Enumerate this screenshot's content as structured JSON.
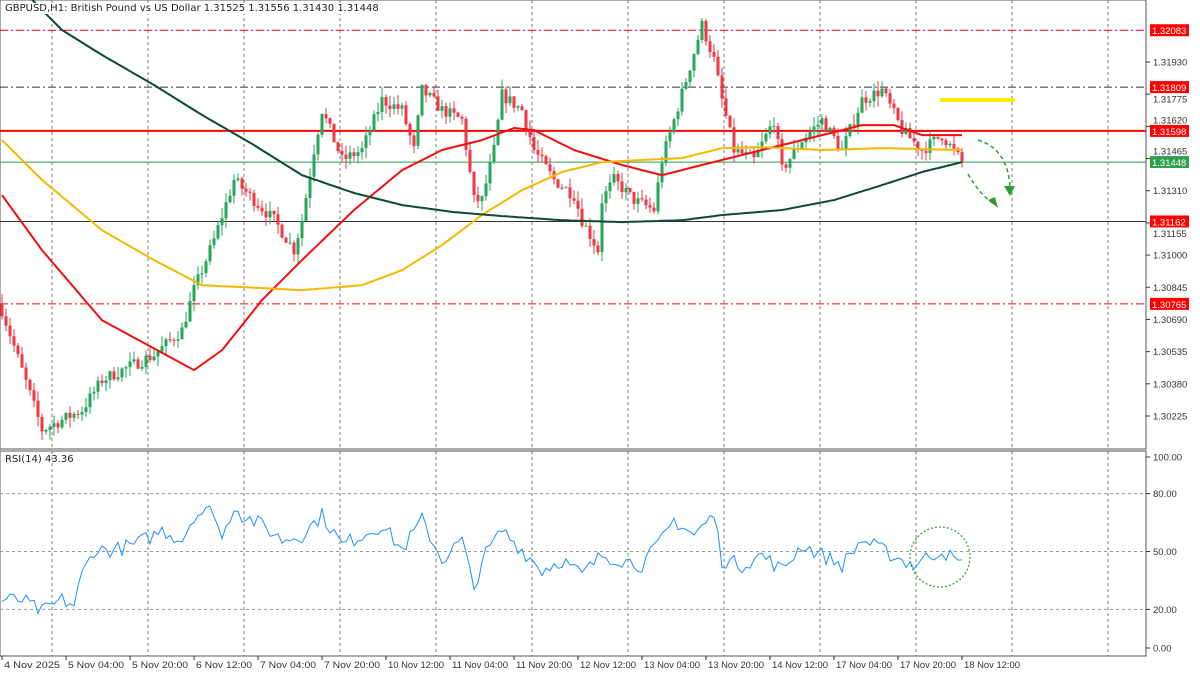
{
  "header": {
    "symbol_line": "GBPUSD,H1:  British Pound vs US Dollar  1.31525 1.31556 1.31430 1.31448"
  },
  "rsi": {
    "title": "RSI(14) 43.36",
    "axis_ticks": [
      "100.00",
      "80.00",
      "50.00",
      "20.00",
      "0.00"
    ],
    "levels": [
      80,
      50,
      20
    ],
    "keyframes": [
      [
        0,
        24.9
      ],
      [
        5,
        24.9
      ],
      [
        10,
        18.7
      ],
      [
        15,
        24.9
      ],
      [
        18,
        22.3
      ],
      [
        20,
        37.8
      ],
      [
        23,
        50.8
      ],
      [
        28,
        50.8
      ],
      [
        33,
        53.4
      ],
      [
        38,
        58.5
      ],
      [
        40,
        61.1
      ],
      [
        45,
        56
      ],
      [
        48,
        68.9
      ],
      [
        53,
        71.5
      ],
      [
        55,
        56
      ],
      [
        58,
        74.1
      ],
      [
        60,
        68.9
      ],
      [
        65,
        63.7
      ],
      [
        70,
        56
      ],
      [
        75,
        58.5
      ],
      [
        80,
        68.9
      ],
      [
        85,
        53.4
      ],
      [
        90,
        58.5
      ],
      [
        95,
        63.7
      ],
      [
        100,
        50.8
      ],
      [
        105,
        66.3
      ],
      [
        110,
        45.6
      ],
      [
        115,
        56
      ],
      [
        118,
        30
      ],
      [
        120,
        45.6
      ],
      [
        125,
        61.1
      ],
      [
        130,
        50.8
      ],
      [
        135,
        40.4
      ],
      [
        140,
        45.6
      ],
      [
        145,
        37.8
      ],
      [
        150,
        48.2
      ],
      [
        155,
        45.6
      ],
      [
        160,
        43
      ],
      [
        165,
        56
      ],
      [
        168,
        66.3
      ],
      [
        173,
        58.5
      ],
      [
        178,
        68.9
      ],
      [
        180,
        45.6
      ],
      [
        185,
        43
      ],
      [
        190,
        48.2
      ],
      [
        195,
        40.4
      ],
      [
        200,
        53.4
      ],
      [
        205,
        48.2
      ],
      [
        210,
        43
      ],
      [
        215,
        56
      ],
      [
        220,
        50.8
      ],
      [
        225,
        45.6
      ],
      [
        228,
        43
      ],
      [
        230,
        45.6
      ],
      [
        235,
        50.8
      ],
      [
        238,
        45.6
      ],
      [
        240,
        43
      ]
    ]
  },
  "chart_data": {
    "type": "candlestick",
    "title": "GBPUSD,H1: British Pound vs US Dollar",
    "ohlc_last": {
      "open": 1.31525,
      "high": 1.31556,
      "low": 1.3143,
      "close": 1.31448
    },
    "ylim": [
      1.3013,
      1.3228
    ],
    "y_ticks": [
      "1.31930",
      "1.31775",
      "1.31620",
      "1.31465",
      "1.31310",
      "1.31155",
      "1.31000",
      "1.30845",
      "1.30690",
      "1.30535",
      "1.30380",
      "1.30225"
    ],
    "x_ticks": [
      "4 Nov 2025",
      "5 Nov 04:00",
      "5 Nov 20:00",
      "6 Nov 12:00",
      "7 Nov 04:00",
      "7 Nov 20:00",
      "10 Nov 12:00",
      "11 Nov 04:00",
      "11 Nov 20:00",
      "12 Nov 12:00",
      "13 Nov 04:00",
      "13 Nov 20:00",
      "14 Nov 12:00",
      "17 Nov 04:00",
      "17 Nov 20:00",
      "18 Nov 12:00"
    ],
    "bars_total": 241,
    "close_keyframes": [
      [
        0,
        1.30735
      ],
      [
        5,
        1.30446
      ],
      [
        10,
        1.30158
      ],
      [
        15,
        1.30206
      ],
      [
        20,
        1.30254
      ],
      [
        25,
        1.30398
      ],
      [
        30,
        1.30446
      ],
      [
        38,
        1.30519
      ],
      [
        45,
        1.30639
      ],
      [
        48,
        1.30832
      ],
      [
        53,
        1.31073
      ],
      [
        58,
        1.31362
      ],
      [
        63,
        1.31265
      ],
      [
        68,
        1.31169
      ],
      [
        73,
        1.31025
      ],
      [
        75,
        1.31169
      ],
      [
        78,
        1.31506
      ],
      [
        80,
        1.31699
      ],
      [
        85,
        1.31458
      ],
      [
        90,
        1.31506
      ],
      [
        95,
        1.31747
      ],
      [
        100,
        1.31699
      ],
      [
        103,
        1.31506
      ],
      [
        105,
        1.31795
      ],
      [
        110,
        1.31699
      ],
      [
        115,
        1.3165
      ],
      [
        118,
        1.31265
      ],
      [
        120,
        1.31265
      ],
      [
        123,
        1.31506
      ],
      [
        125,
        1.31771
      ],
      [
        130,
        1.31699
      ],
      [
        133,
        1.31506
      ],
      [
        138,
        1.31362
      ],
      [
        143,
        1.31289
      ],
      [
        145,
        1.31169
      ],
      [
        149,
        1.31025
      ],
      [
        150,
        1.31265
      ],
      [
        153,
        1.31362
      ],
      [
        158,
        1.31265
      ],
      [
        163,
        1.31217
      ],
      [
        165,
        1.31458
      ],
      [
        168,
        1.3165
      ],
      [
        171,
        1.31843
      ],
      [
        175,
        1.32108
      ],
      [
        178,
        1.3194
      ],
      [
        180,
        1.31747
      ],
      [
        183,
        1.31506
      ],
      [
        188,
        1.31458
      ],
      [
        193,
        1.3165
      ],
      [
        195,
        1.3141
      ],
      [
        200,
        1.31554
      ],
      [
        205,
        1.3165
      ],
      [
        210,
        1.31506
      ],
      [
        215,
        1.31747
      ],
      [
        220,
        1.31795
      ],
      [
        225,
        1.31602
      ],
      [
        230,
        1.31506
      ],
      [
        235,
        1.31578
      ],
      [
        240,
        1.31448
      ]
    ],
    "series": [
      {
        "name": "MA red",
        "color": "#f01010",
        "keyframes": [
          [
            0,
            1.31289
          ],
          [
            10,
            1.31024
          ],
          [
            25,
            1.30686
          ],
          [
            48,
            1.30446
          ],
          [
            55,
            1.30542
          ],
          [
            65,
            1.30783
          ],
          [
            75,
            1.30976
          ],
          [
            88,
            1.31217
          ],
          [
            100,
            1.31409
          ],
          [
            110,
            1.31506
          ],
          [
            120,
            1.31554
          ],
          [
            128,
            1.31612
          ],
          [
            133,
            1.31602
          ],
          [
            143,
            1.31506
          ],
          [
            155,
            1.31434
          ],
          [
            165,
            1.31385
          ],
          [
            175,
            1.31434
          ],
          [
            190,
            1.31506
          ],
          [
            205,
            1.31578
          ],
          [
            215,
            1.31626
          ],
          [
            223,
            1.31626
          ],
          [
            230,
            1.31578
          ],
          [
            240,
            1.31578
          ]
        ]
      },
      {
        "name": "MA orange",
        "color": "#f5b800",
        "keyframes": [
          [
            0,
            1.31554
          ],
          [
            10,
            1.31362
          ],
          [
            25,
            1.3112
          ],
          [
            38,
            1.30976
          ],
          [
            50,
            1.30855
          ],
          [
            65,
            1.30841
          ],
          [
            75,
            1.30831
          ],
          [
            90,
            1.30855
          ],
          [
            100,
            1.30927
          ],
          [
            110,
            1.31048
          ],
          [
            120,
            1.31193
          ],
          [
            130,
            1.31313
          ],
          [
            140,
            1.314
          ],
          [
            150,
            1.31448
          ],
          [
            160,
            1.31458
          ],
          [
            170,
            1.31467
          ],
          [
            180,
            1.31515
          ],
          [
            190,
            1.3152
          ],
          [
            205,
            1.31506
          ],
          [
            220,
            1.31515
          ],
          [
            240,
            1.31506
          ]
        ]
      },
      {
        "name": "MA dark green",
        "color": "#0b4a35",
        "keyframes": [
          [
            5,
            1.3228
          ],
          [
            10,
            1.32181
          ],
          [
            15,
            1.32084
          ],
          [
            25,
            1.31964
          ],
          [
            38,
            1.31819
          ],
          [
            50,
            1.31675
          ],
          [
            63,
            1.3153
          ],
          [
            75,
            1.31385
          ],
          [
            88,
            1.31299
          ],
          [
            100,
            1.31241
          ],
          [
            113,
            1.31207
          ],
          [
            125,
            1.31188
          ],
          [
            140,
            1.31168
          ],
          [
            155,
            1.31159
          ],
          [
            170,
            1.31168
          ],
          [
            180,
            1.31193
          ],
          [
            195,
            1.31217
          ],
          [
            208,
            1.31265
          ],
          [
            220,
            1.31337
          ],
          [
            230,
            1.314
          ],
          [
            240,
            1.31448
          ]
        ]
      }
    ],
    "horizontal_levels": [
      {
        "price": "1.32083",
        "color": "#ff0000",
        "style": "dashdot",
        "tag_color": "#ff0000"
      },
      {
        "price": "1.31809",
        "color": "#333333",
        "style": "dashdot",
        "tag_color": "#ff0000"
      },
      {
        "price": "1.31598",
        "color": "#ff0000",
        "style": "solid-thick",
        "tag_color": "#ff0000"
      },
      {
        "price": "1.31448",
        "color": "#2e9e4f",
        "style": "solid",
        "tag_color": "#2e9e4f"
      },
      {
        "price": "1.31162",
        "color": "#333333",
        "style": "solid",
        "tag_color": "#ff0000"
      },
      {
        "price": "1.30765",
        "color": "#ff0000",
        "style": "dashdot",
        "tag_color": "#ff0000"
      }
    ],
    "annotations": {
      "yellow_level_price": 1.31747,
      "yellow_color": "#ffee00",
      "arrow_color": "#2e9e2e",
      "rsi_circle_color": "#3aa33a"
    },
    "colors": {
      "bull": "#26a65b",
      "bear": "#f23645"
    }
  }
}
